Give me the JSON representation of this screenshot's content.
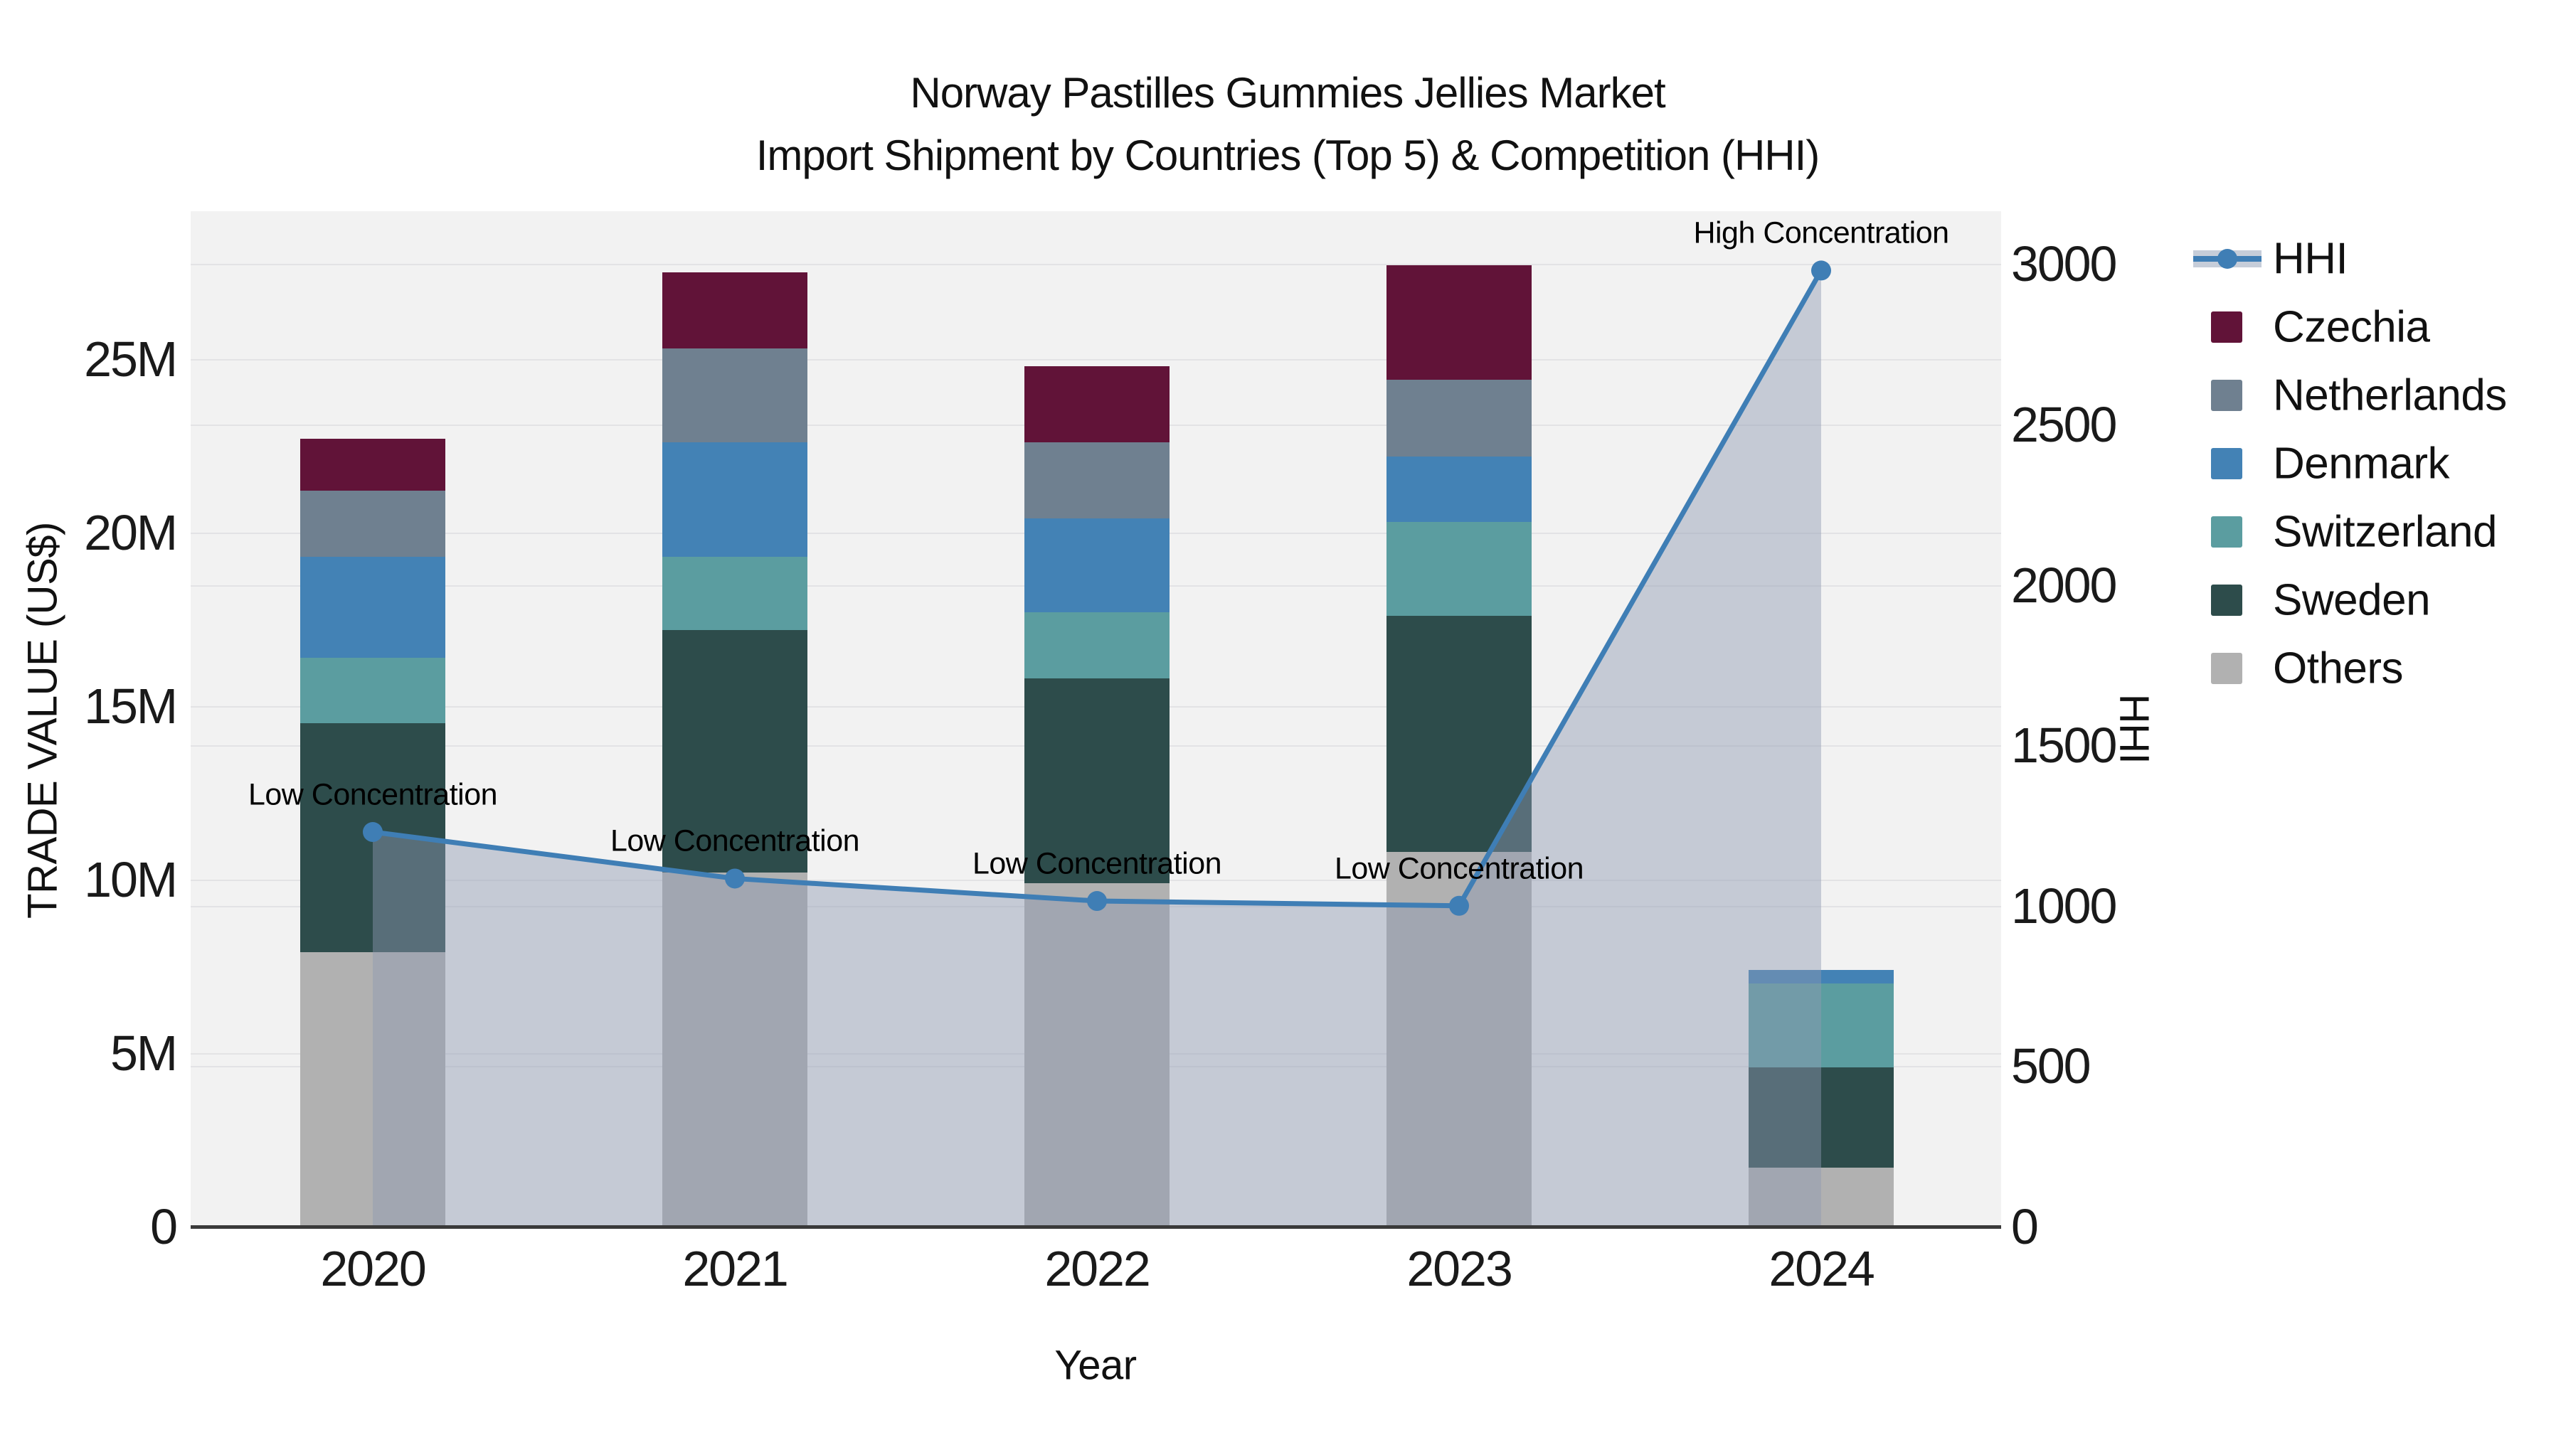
{
  "title": {
    "line1": "Norway Pastilles Gummies Jellies Market",
    "line2": "Import Shipment by Countries (Top 5) & Competition (HHI)"
  },
  "axes": {
    "x": {
      "title": "Year",
      "ticks": [
        "2020",
        "2021",
        "2022",
        "2023",
        "2024"
      ]
    },
    "y_left": {
      "title": "TRADE VALUE (US$)",
      "ticks": [
        {
          "label": "0",
          "value": 0
        },
        {
          "label": "5M",
          "value": 5
        },
        {
          "label": "10M",
          "value": 10
        },
        {
          "label": "15M",
          "value": 15
        },
        {
          "label": "20M",
          "value": 20
        },
        {
          "label": "25M",
          "value": 25
        }
      ]
    },
    "y_right": {
      "title": "HHI",
      "ticks": [
        {
          "label": "0",
          "value": 0
        },
        {
          "label": "500",
          "value": 500
        },
        {
          "label": "1000",
          "value": 1000
        },
        {
          "label": "1500",
          "value": 1500
        },
        {
          "label": "2000",
          "value": 2000
        },
        {
          "label": "2500",
          "value": 2500
        },
        {
          "label": "3000",
          "value": 3000
        }
      ]
    }
  },
  "legend": {
    "items": [
      {
        "label": "HHI",
        "type": "line",
        "color": "#3f7eb5"
      },
      {
        "label": "Czechia",
        "type": "swatch",
        "color": "#611338"
      },
      {
        "label": "Netherlands",
        "type": "swatch",
        "color": "#6f8090"
      },
      {
        "label": "Denmark",
        "type": "swatch",
        "color": "#4382b5"
      },
      {
        "label": "Switzerland",
        "type": "swatch",
        "color": "#5b9da0"
      },
      {
        "label": "Sweden",
        "type": "swatch",
        "color": "#2d4c4b"
      },
      {
        "label": "Others",
        "type": "swatch",
        "color": "#b1b1b1"
      }
    ]
  },
  "chart_data": {
    "type": "combo",
    "bar_type": "stacked",
    "x": [
      2020,
      2021,
      2022,
      2023,
      2024
    ],
    "bar_unit": "million US$ (trade value)",
    "series": [
      {
        "name": "Others",
        "color": "#b1b1b1",
        "values": [
          7.9,
          10.2,
          9.9,
          10.8,
          1.7
        ]
      },
      {
        "name": "Sweden",
        "color": "#2d4c4b",
        "values": [
          6.6,
          7.0,
          5.9,
          6.8,
          2.9
        ]
      },
      {
        "name": "Switzerland",
        "color": "#5b9da0",
        "values": [
          1.9,
          2.1,
          1.9,
          2.7,
          2.4
        ]
      },
      {
        "name": "Denmark",
        "color": "#4382b5",
        "values": [
          2.9,
          3.3,
          2.7,
          1.9,
          0.4
        ]
      },
      {
        "name": "Netherlands",
        "color": "#6f8090",
        "values": [
          1.9,
          2.7,
          2.2,
          2.2,
          0.0
        ]
      },
      {
        "name": "Czechia",
        "color": "#611338",
        "values": [
          1.5,
          2.2,
          2.2,
          3.3,
          0.0
        ]
      }
    ],
    "bar_totals": [
      22.7,
      27.5,
      24.8,
      27.7,
      7.4
    ],
    "line": {
      "name": "HHI",
      "axis": "right",
      "color": "#3f7eb5",
      "area_fill": "rgba(141,154,178,0.45)",
      "values": [
        1230,
        1085,
        1015,
        1000,
        2980
      ]
    },
    "ylim_left_musd": [
      0,
      29.3
    ],
    "ylim_right_hhi": [
      0,
      3165
    ],
    "grid": true,
    "legend_position": "right",
    "annotations": [
      {
        "text": "Low Concentration",
        "x": 2020
      },
      {
        "text": "Low Concentration",
        "x": 2021
      },
      {
        "text": "Low Concentration",
        "x": 2022
      },
      {
        "text": "Low Concentration",
        "x": 2023
      },
      {
        "text": "High Concentration",
        "x": 2024
      }
    ]
  }
}
